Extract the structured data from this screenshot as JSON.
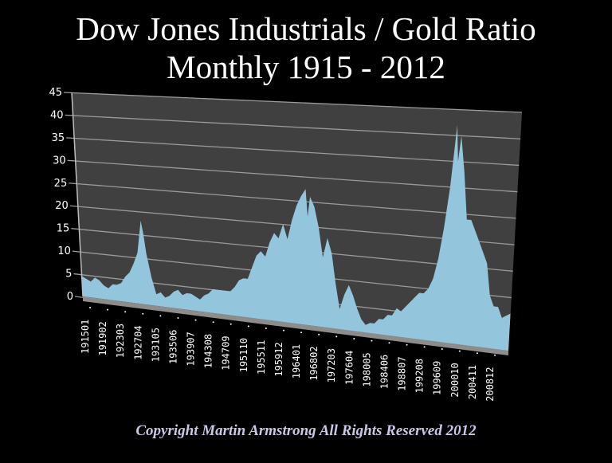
{
  "title_line1": "Dow Jones Industrials / Gold Ratio",
  "title_line2": "Monthly 1915 - 2012",
  "copyright": "Copyright Martin Armstrong All Rights Reserved 2012",
  "colors": {
    "background": "#000000",
    "plot_wall": "#404040",
    "gridline": "#9a9a9a",
    "area_fill": "#93c6dc",
    "floor": "#8c8c8c",
    "text": "#ffffff",
    "copyright": "#c9c8e6"
  },
  "chart_data": {
    "type": "area",
    "title": "Dow Jones Industrials / Gold Ratio — Monthly 1915 - 2012",
    "xlabel": "",
    "ylabel": "",
    "ylim": [
      0,
      45
    ],
    "yticks": [
      0,
      5,
      10,
      15,
      20,
      25,
      30,
      35,
      40,
      45
    ],
    "xticks": [
      "191501",
      "191902",
      "192303",
      "192704",
      "193105",
      "193506",
      "193907",
      "194308",
      "194709",
      "195110",
      "195511",
      "195912",
      "196401",
      "196802",
      "197203",
      "197604",
      "198005",
      "198406",
      "198807",
      "199208",
      "199609",
      "200010",
      "200411",
      "200812"
    ],
    "xrange": [
      1915.0,
      2012.9
    ],
    "grid": true,
    "legend": null,
    "style": "3d-perspective area",
    "series": [
      {
        "name": "Dow/Gold Ratio",
        "x": [
          1915,
          1916,
          1917,
          1918,
          1919,
          1920,
          1921,
          1922,
          1923,
          1924,
          1925,
          1926,
          1927,
          1928,
          1929,
          1929.5,
          1930,
          1931,
          1932,
          1933,
          1934,
          1935,
          1936,
          1937,
          1938,
          1939,
          1940,
          1941,
          1942,
          1943,
          1944,
          1945,
          1946,
          1947,
          1948,
          1949,
          1950,
          1951,
          1952,
          1953,
          1954,
          1955,
          1956,
          1957,
          1958,
          1959,
          1960,
          1961,
          1962,
          1963,
          1964,
          1965,
          1966,
          1966.5,
          1967,
          1968,
          1969,
          1970,
          1971,
          1972,
          1973,
          1974,
          1975,
          1976,
          1977,
          1978,
          1979,
          1980,
          1981,
          1982,
          1983,
          1984,
          1985,
          1986,
          1987,
          1988,
          1989,
          1990,
          1991,
          1992,
          1993,
          1994,
          1995,
          1996,
          1997,
          1998,
          1999,
          1999.5,
          2000,
          2001,
          2002,
          2003,
          2004,
          2005,
          2006,
          2007,
          2008,
          2009,
          2010,
          2011,
          2012.9
        ],
        "values": [
          4.5,
          4,
          3.5,
          4.5,
          4,
          3,
          2.5,
          3.5,
          3.5,
          4,
          5.5,
          6.5,
          8.5,
          11,
          18,
          15,
          11,
          6,
          2.5,
          3,
          2,
          2.5,
          3.5,
          4,
          3,
          3.5,
          3.5,
          3,
          2.5,
          3.5,
          4,
          5,
          5,
          5,
          5,
          5,
          6,
          7.5,
          8,
          8,
          10.5,
          13,
          14,
          13,
          16,
          18,
          17,
          20,
          17,
          21,
          24,
          26,
          27.5,
          22,
          26,
          24,
          20,
          14,
          18,
          15,
          9,
          4,
          7,
          9,
          7,
          4.5,
          2.5,
          1.5,
          2,
          2,
          3,
          3,
          4,
          4,
          5.5,
          5,
          6,
          7,
          8,
          9,
          9,
          10,
          12,
          16,
          22,
          30,
          42,
          35,
          40,
          33,
          24,
          24,
          22,
          20,
          18,
          16,
          10,
          8,
          8,
          6,
          7
        ]
      }
    ]
  }
}
